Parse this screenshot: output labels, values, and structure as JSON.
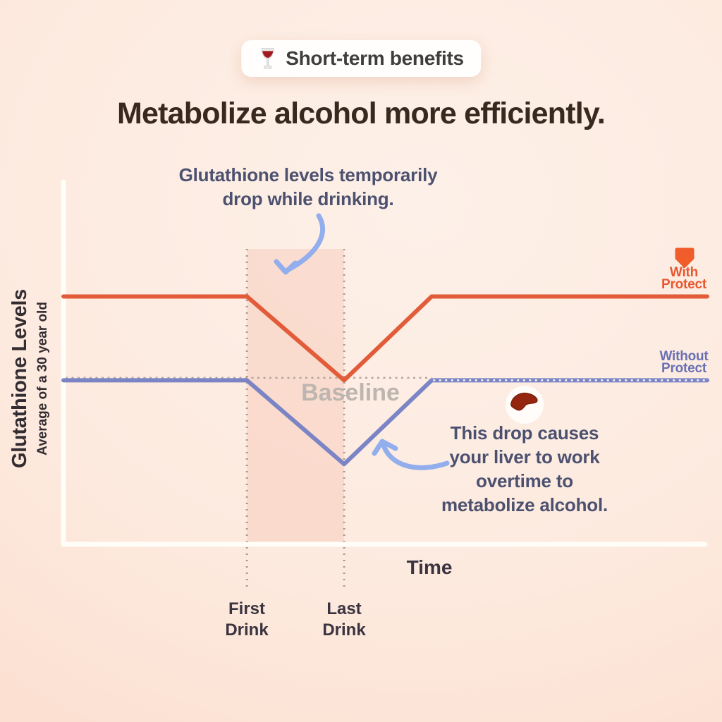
{
  "badge": {
    "icon": "wine-glass",
    "label": "Short-term benefits"
  },
  "title": "Metabolize alcohol more efficiently.",
  "annotations": {
    "drop": {
      "lines": [
        "Glutathione levels temporarily",
        "drop while drinking."
      ]
    },
    "liver": {
      "lines": [
        "This drop causes",
        "your liver to work",
        "overtime to",
        "metabolize alcohol."
      ]
    }
  },
  "axis": {
    "y_title": "Glutathione Levels",
    "y_subtitle": "Average of a 30 year old"
  },
  "colors": {
    "badge_text": "#3f3e3e",
    "title_text": "#38291f",
    "annotation_text": "#4c5170",
    "accent_orange": "#e8582f",
    "line_orange": "#e25c3a",
    "line_blue": "#7b84c4",
    "legend_blue": "#6971b4",
    "baseline_text": "#bdb5af",
    "dots": "#a99b90",
    "band": "rgba(246,177,155,0.28)",
    "axis_white": "#fffdf7",
    "arrow_blue": "#92aeec",
    "axis_label_text": "#3a3440",
    "y_label_text": "#332c31",
    "liver_red": "#942610",
    "wine_red": "#a31a1e"
  },
  "chart_data": {
    "type": "line",
    "title": "Metabolize alcohol more efficiently.",
    "xlabel": "Time",
    "ylabel": "Glutathione Levels (Average of a 30 year old)",
    "xlim": [
      0,
      10
    ],
    "ylim": [
      0,
      100
    ],
    "grid": false,
    "legend_position": "right of line ends",
    "series": [
      {
        "name": "With Protect",
        "color": "#e25c3a",
        "x": [
          0,
          2.85,
          4.36,
          5.72,
          10
        ],
        "y": [
          68,
          68,
          45,
          68,
          68
        ]
      },
      {
        "name": "Without Protect",
        "color": "#7b84c4",
        "x": [
          0,
          2.85,
          4.36,
          5.72,
          10
        ],
        "y": [
          45,
          45,
          22,
          45,
          45
        ]
      }
    ],
    "events": [
      {
        "label": "First Drink",
        "x": 2.85
      },
      {
        "label": "Last Drink",
        "x": 4.36
      }
    ],
    "baseline": {
      "label": "Baseline",
      "y": 45
    },
    "notes": "Glutathione dips between first and last drink; with Protect the dip only reaches baseline, without Protect it falls below baseline."
  }
}
